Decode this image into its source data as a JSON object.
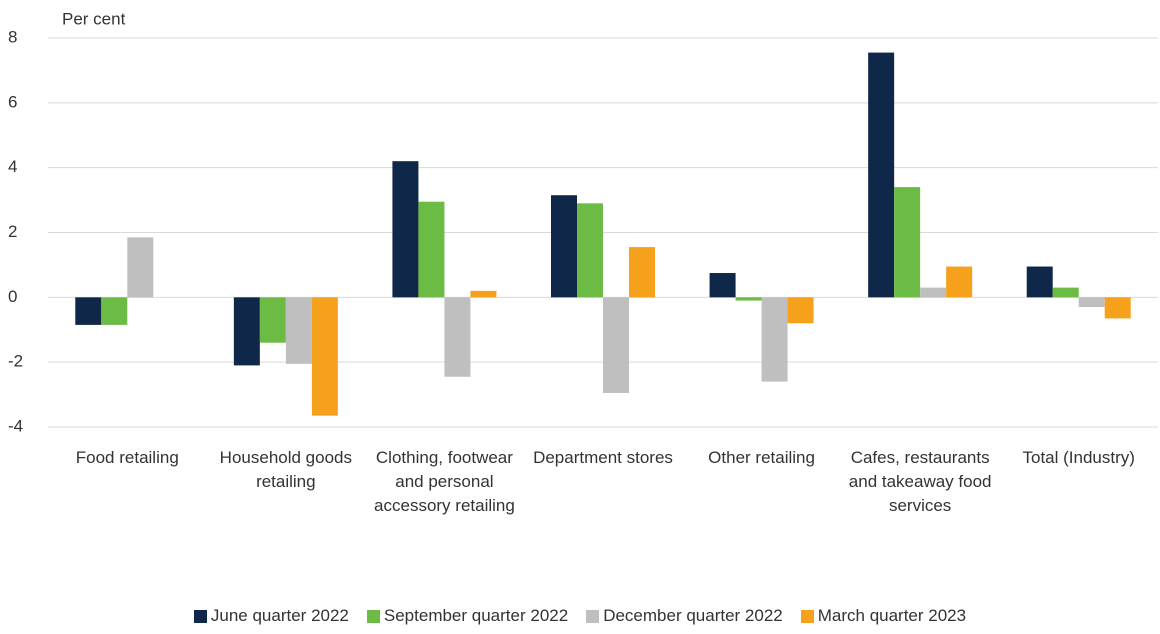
{
  "chart_data": {
    "type": "bar",
    "y_label": "Per cent",
    "categories": [
      "Food retailing",
      "Household goods retailing",
      "Clothing, footwear and personal accessory retailing",
      "Department stores",
      "Other retailing",
      "Cafes, restaurants and takeaway food services",
      "Total (Industry)"
    ],
    "series": [
      {
        "name": "June quarter 2022",
        "color": "#0f2748",
        "values": [
          -0.85,
          -2.1,
          4.2,
          3.15,
          0.75,
          7.55,
          0.95
        ]
      },
      {
        "name": "September quarter 2022",
        "color": "#6cbb45",
        "values": [
          -0.85,
          -1.4,
          2.95,
          2.9,
          -0.1,
          3.4,
          0.3
        ]
      },
      {
        "name": "December quarter 2022",
        "color": "#bfbfbf",
        "values": [
          1.85,
          -2.05,
          -2.45,
          -2.95,
          -2.6,
          0.3,
          -0.3
        ]
      },
      {
        "name": "March quarter 2023",
        "color": "#f5a11c",
        "values": [
          null,
          -3.65,
          0.2,
          1.55,
          -0.8,
          0.95,
          -0.65
        ]
      }
    ],
    "ylim": [
      -4,
      8
    ],
    "yticks": [
      -4,
      -2,
      0,
      2,
      4,
      6,
      8
    ],
    "grid": true,
    "legend": "bottom"
  }
}
